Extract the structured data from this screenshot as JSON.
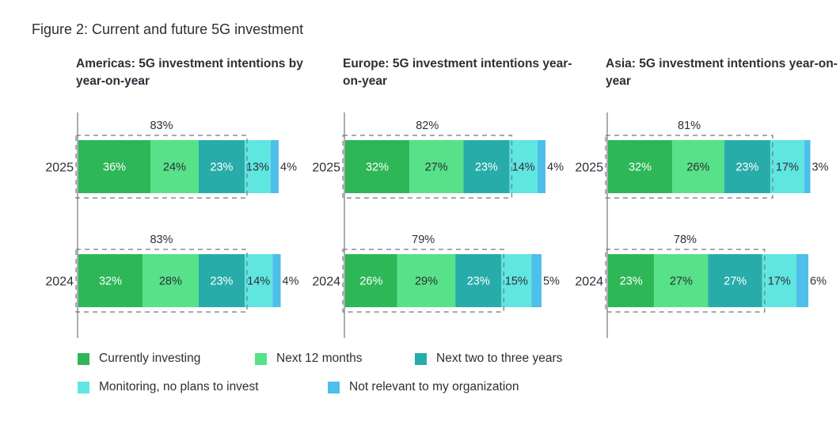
{
  "figure_title": "Figure 2: Current and future 5G investment",
  "colors": {
    "currently_investing": "#2db757",
    "next_12_months": "#57e188",
    "next_two_to_three_years": "#27acaa",
    "monitoring": "#60e6e1",
    "not_relevant": "#4ebeeb",
    "text": "#2e2e38",
    "axis": "#747480",
    "dash_box": "#747480"
  },
  "chart_data": [
    {
      "type": "bar",
      "orientation": "horizontal",
      "stacked": true,
      "title": "Americas: 5G investment intentions by year-on-year",
      "categories": [
        "2025",
        "2024"
      ],
      "series": [
        {
          "name": "Currently investing",
          "values": [
            36,
            32
          ]
        },
        {
          "name": "Next 12 months",
          "values": [
            24,
            28
          ]
        },
        {
          "name": "Next two to three years",
          "values": [
            23,
            23
          ]
        },
        {
          "name": "Monitoring, no plans to invest",
          "values": [
            13,
            14
          ]
        },
        {
          "name": "Not relevant to my organization",
          "values": [
            4,
            4
          ]
        }
      ],
      "bracket_totals": [
        "83%",
        "83%"
      ],
      "value_labels": [
        [
          "36%",
          "24%",
          "23%",
          "13%",
          "4%"
        ],
        [
          "32%",
          "28%",
          "23%",
          "14%",
          "4%"
        ]
      ],
      "xlim": [
        0,
        100
      ],
      "legend_position": "bottom"
    },
    {
      "type": "bar",
      "orientation": "horizontal",
      "stacked": true,
      "title": "Europe: 5G investment intentions year-on-year",
      "categories": [
        "2025",
        "2024"
      ],
      "series": [
        {
          "name": "Currently investing",
          "values": [
            32,
            26
          ]
        },
        {
          "name": "Next 12 months",
          "values": [
            27,
            29
          ]
        },
        {
          "name": "Next two to three years",
          "values": [
            23,
            23
          ]
        },
        {
          "name": "Monitoring, no plans to invest",
          "values": [
            14,
            15
          ]
        },
        {
          "name": "Not relevant to my organization",
          "values": [
            4,
            5
          ]
        }
      ],
      "bracket_totals": [
        "82%",
        "79%"
      ],
      "value_labels": [
        [
          "32%",
          "27%",
          "23%",
          "14%",
          "4%"
        ],
        [
          "26%",
          "29%",
          "23%",
          "15%",
          "5%"
        ]
      ],
      "xlim": [
        0,
        100
      ],
      "legend_position": "bottom"
    },
    {
      "type": "bar",
      "orientation": "horizontal",
      "stacked": true,
      "title": "Asia: 5G investment intentions year-on-year",
      "categories": [
        "2025",
        "2024"
      ],
      "series": [
        {
          "name": "Currently investing",
          "values": [
            32,
            23
          ]
        },
        {
          "name": "Next 12 months",
          "values": [
            26,
            27
          ]
        },
        {
          "name": "Next two to three years",
          "values": [
            23,
            27
          ]
        },
        {
          "name": "Monitoring, no plans to invest",
          "values": [
            17,
            17
          ]
        },
        {
          "name": "Not relevant to my organization",
          "values": [
            3,
            6
          ]
        }
      ],
      "bracket_totals": [
        "81%",
        "78%"
      ],
      "value_labels": [
        [
          "32%",
          "26%",
          "23%",
          "17%",
          "3%"
        ],
        [
          "23%",
          "27%",
          "27%",
          "17%",
          "6%"
        ]
      ],
      "xlim": [
        0,
        100
      ],
      "legend_position": "bottom"
    }
  ]
}
